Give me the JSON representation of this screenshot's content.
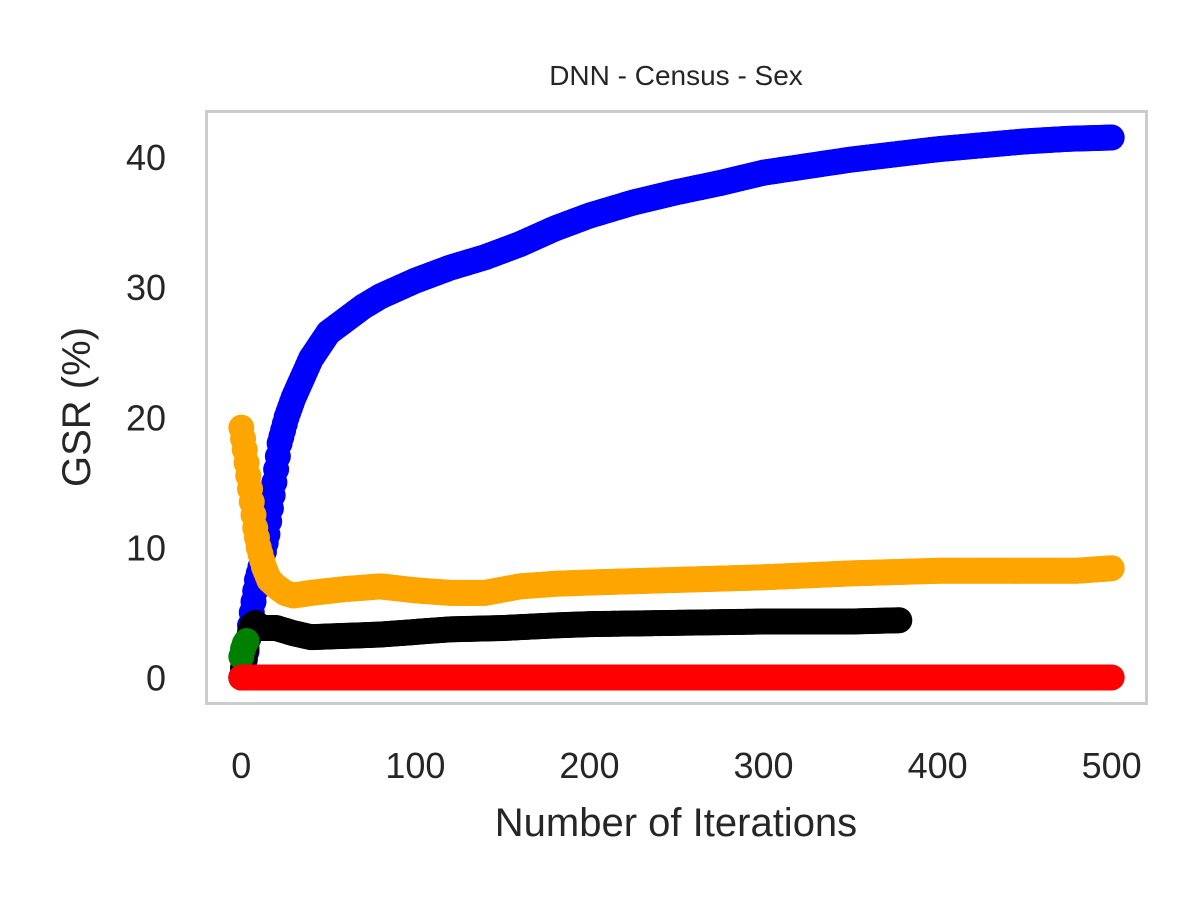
{
  "chart_data": {
    "type": "scatter",
    "title": "DNN - Census - Sex",
    "xlabel": "Number of Iterations",
    "ylabel": "GSR (%)",
    "xlim": [
      -20,
      520
    ],
    "ylim": [
      -2,
      43.5
    ],
    "xticks": [
      0,
      100,
      200,
      300,
      400,
      500
    ],
    "yticks": [
      0,
      10,
      20,
      30,
      40
    ],
    "grid": false,
    "colors": {
      "axes_frame": "#cccccc",
      "text": "#262626"
    },
    "series": [
      {
        "color": "#0000ff",
        "x_start": 0,
        "x_end": 500,
        "anchors": [
          [
            0,
            0
          ],
          [
            3,
            2
          ],
          [
            6,
            5
          ],
          [
            9,
            7.5
          ],
          [
            12,
            9
          ],
          [
            15,
            11
          ],
          [
            18,
            14
          ],
          [
            22,
            18
          ],
          [
            26,
            20
          ],
          [
            30,
            21.5
          ],
          [
            35,
            23
          ],
          [
            40,
            24.5
          ],
          [
            45,
            25.5
          ],
          [
            50,
            26.5
          ],
          [
            60,
            27.5
          ],
          [
            70,
            28.5
          ],
          [
            80,
            29.3
          ],
          [
            100,
            30.5
          ],
          [
            120,
            31.5
          ],
          [
            140,
            32.3
          ],
          [
            160,
            33.3
          ],
          [
            180,
            34.5
          ],
          [
            200,
            35.5
          ],
          [
            225,
            36.5
          ],
          [
            250,
            37.3
          ],
          [
            275,
            38
          ],
          [
            300,
            38.8
          ],
          [
            325,
            39.3
          ],
          [
            350,
            39.8
          ],
          [
            375,
            40.2
          ],
          [
            400,
            40.6
          ],
          [
            425,
            40.9
          ],
          [
            450,
            41.2
          ],
          [
            475,
            41.4
          ],
          [
            500,
            41.5
          ]
        ]
      },
      {
        "color": "#ffa500",
        "x_start": 0,
        "x_end": 500,
        "anchors": [
          [
            0,
            19.2
          ],
          [
            2,
            17.5
          ],
          [
            4,
            15.5
          ],
          [
            6,
            13.5
          ],
          [
            8,
            11.5
          ],
          [
            10,
            10
          ],
          [
            13,
            8.5
          ],
          [
            16,
            7.5
          ],
          [
            20,
            7
          ],
          [
            25,
            6.5
          ],
          [
            30,
            6.3
          ],
          [
            40,
            6.5
          ],
          [
            60,
            6.8
          ],
          [
            80,
            7
          ],
          [
            100,
            6.7
          ],
          [
            120,
            6.5
          ],
          [
            140,
            6.5
          ],
          [
            160,
            7
          ],
          [
            180,
            7.2
          ],
          [
            200,
            7.3
          ],
          [
            250,
            7.5
          ],
          [
            300,
            7.7
          ],
          [
            350,
            8
          ],
          [
            400,
            8.2
          ],
          [
            450,
            8.2
          ],
          [
            480,
            8.2
          ],
          [
            500,
            8.4
          ]
        ]
      },
      {
        "color": "#000000",
        "x_start": 0,
        "x_end": 378,
        "anchors": [
          [
            0,
            0
          ],
          [
            2,
            1.5
          ],
          [
            4,
            3
          ],
          [
            6,
            4
          ],
          [
            8,
            4.2
          ],
          [
            12,
            3.8
          ],
          [
            20,
            3.8
          ],
          [
            30,
            3.4
          ],
          [
            40,
            3.1
          ],
          [
            60,
            3.2
          ],
          [
            80,
            3.3
          ],
          [
            100,
            3.5
          ],
          [
            120,
            3.7
          ],
          [
            150,
            3.8
          ],
          [
            180,
            4
          ],
          [
            200,
            4.1
          ],
          [
            250,
            4.2
          ],
          [
            300,
            4.3
          ],
          [
            350,
            4.3
          ],
          [
            378,
            4.4
          ]
        ]
      },
      {
        "color": "#008000",
        "x_start": 0,
        "x_end": 3,
        "anchors": [
          [
            0,
            1.6
          ],
          [
            1,
            2.2
          ],
          [
            2,
            2.6
          ],
          [
            3,
            2.8
          ]
        ]
      },
      {
        "color": "#ff0000",
        "x_start": 0,
        "x_end": 500,
        "anchors": [
          [
            0,
            0
          ],
          [
            500,
            0
          ]
        ]
      }
    ]
  }
}
